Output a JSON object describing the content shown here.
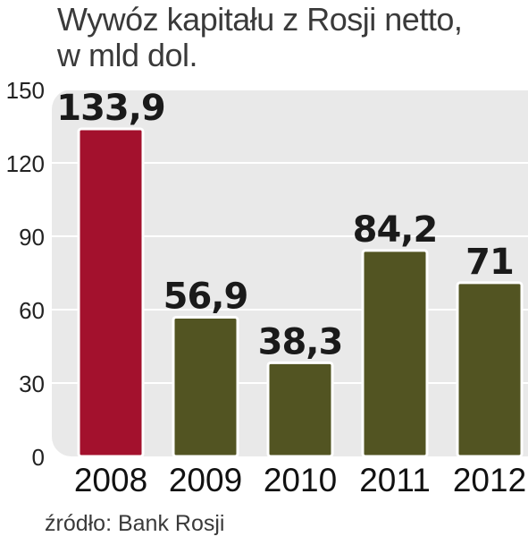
{
  "title_line1": "Wywóz kapitału z Rosji netto,",
  "title_line2": "w mld dol.",
  "source": "źródło: Bank Rosji",
  "colors": {
    "highlight": "#a3112d",
    "bar": "#525422",
    "plot_bg": "#e9e9e9",
    "grid": "#ffffff",
    "text": "#222222"
  },
  "chart_data": {
    "type": "bar",
    "title": "Wywóz kapitału z Rosji netto, w mld dol.",
    "categories": [
      "2008",
      "2009",
      "2010",
      "2011",
      "2012"
    ],
    "values": [
      133.9,
      56.9,
      38.3,
      84.2,
      71
    ],
    "value_labels": [
      "133,9",
      "56,9",
      "38,3",
      "84,2",
      "71"
    ],
    "highlight_index": 0,
    "ylim": [
      0,
      150
    ],
    "yticks": [
      0,
      30,
      60,
      90,
      120,
      150
    ],
    "ytick_labels": [
      "0",
      "30",
      "60",
      "90",
      "120",
      "150"
    ],
    "grid": true,
    "xlabel": "",
    "ylabel": ""
  }
}
